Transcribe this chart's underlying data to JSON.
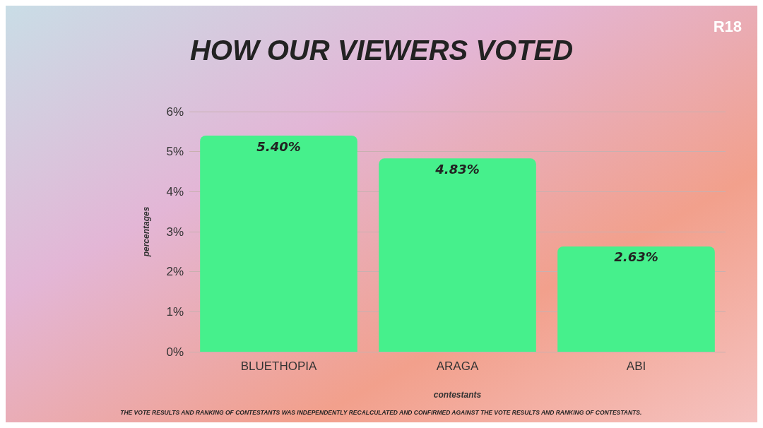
{
  "chart_data": {
    "type": "bar",
    "title": "HOW OUR VIEWERS VOTED",
    "xlabel": "contestants",
    "ylabel": "percentages",
    "categories": [
      "BLUETHOPIA",
      "ARAGA",
      "ABI"
    ],
    "values": [
      5.4,
      4.83,
      2.63
    ],
    "value_labels": [
      "5.40%",
      "4.83%",
      "2.63%"
    ],
    "color": "#46f08c",
    "ylim": [
      0,
      6
    ],
    "yticks": [
      {
        "value": 0,
        "label": "0%"
      },
      {
        "value": 1,
        "label": "1%"
      },
      {
        "value": 2,
        "label": "2%"
      },
      {
        "value": 3,
        "label": "3%"
      },
      {
        "value": 4,
        "label": "4%"
      },
      {
        "value": 5,
        "label": "5%"
      },
      {
        "value": 6,
        "label": "6%"
      }
    ],
    "grid": "y",
    "annotations": [
      "R18",
      "THE VOTE RESULTS AND RANKING OF CONTESTANTS WAS INDEPENDENTLY RECALCULATED AND CONFIRMED AGAINST THE VOTE RESULTS AND RANKING OF CONTESTANTS."
    ]
  }
}
